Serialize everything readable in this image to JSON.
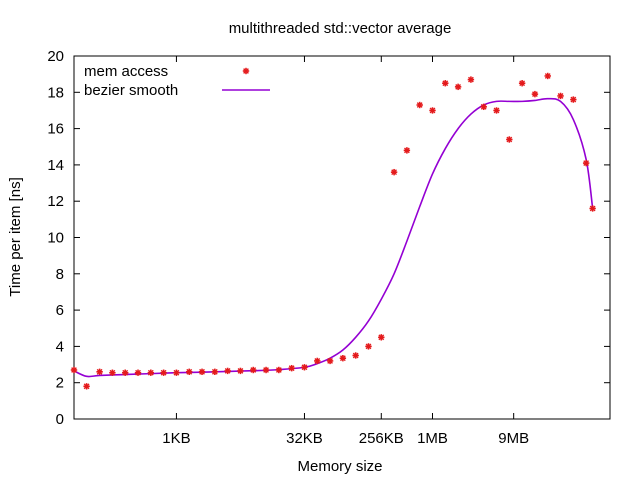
{
  "chart_data": {
    "type": "scatter",
    "title": "multithreaded std::vector average",
    "xlabel": "Memory size",
    "ylabel": "Time per item [ns]",
    "x_scale": "log2",
    "x_unit": "bytes",
    "xlim": [
      64,
      128000000
    ],
    "ylim": [
      0,
      20
    ],
    "y_ticks": [
      0,
      2,
      4,
      6,
      8,
      10,
      12,
      14,
      16,
      18,
      20
    ],
    "x_ticks": [
      {
        "label": "1KB",
        "value": 1024
      },
      {
        "label": "32KB",
        "value": 32768
      },
      {
        "label": "256KB",
        "value": 262144
      },
      {
        "label": "1MB",
        "value": 1048576
      },
      {
        "label": "9MB",
        "value": 9437184
      }
    ],
    "grid": false,
    "legend_position": "top-left",
    "series": [
      {
        "name": "mem access",
        "style": "points",
        "color": "#e41a1c",
        "points": [
          [
            64,
            2.7
          ],
          [
            90,
            1.8
          ],
          [
            128,
            2.6
          ],
          [
            181,
            2.55
          ],
          [
            256,
            2.55
          ],
          [
            362,
            2.55
          ],
          [
            512,
            2.55
          ],
          [
            724,
            2.55
          ],
          [
            1024,
            2.55
          ],
          [
            1448,
            2.6
          ],
          [
            2048,
            2.6
          ],
          [
            2896,
            2.6
          ],
          [
            4096,
            2.65
          ],
          [
            5793,
            2.65
          ],
          [
            8192,
            2.7
          ],
          [
            11585,
            2.7
          ],
          [
            16384,
            2.7
          ],
          [
            23170,
            2.8
          ],
          [
            32768,
            2.85
          ],
          [
            46341,
            3.2
          ],
          [
            65536,
            3.2
          ],
          [
            92682,
            3.35
          ],
          [
            131072,
            3.5
          ],
          [
            185364,
            4.0
          ],
          [
            262144,
            4.5
          ],
          [
            370728,
            13.6
          ],
          [
            524288,
            14.8
          ],
          [
            741455,
            17.3
          ],
          [
            1048576,
            17.0
          ],
          [
            1482910,
            18.5
          ],
          [
            2097152,
            18.3
          ],
          [
            2965820,
            18.7
          ],
          [
            4194304,
            17.2
          ],
          [
            5931640,
            17.0
          ],
          [
            8388608,
            15.4
          ],
          [
            11863280,
            18.5
          ],
          [
            16777216,
            17.9
          ],
          [
            23726560,
            18.9
          ],
          [
            33554432,
            17.8
          ],
          [
            47453120,
            17.6
          ],
          [
            67108864,
            14.1
          ],
          [
            80000000,
            11.6
          ]
        ]
      },
      {
        "name": "bezier smooth",
        "style": "line",
        "color": "#9400d3",
        "points": [
          [
            64,
            2.65
          ],
          [
            90,
            2.35
          ],
          [
            128,
            2.4
          ],
          [
            256,
            2.45
          ],
          [
            512,
            2.5
          ],
          [
            1024,
            2.55
          ],
          [
            2048,
            2.58
          ],
          [
            4096,
            2.62
          ],
          [
            8192,
            2.66
          ],
          [
            16384,
            2.72
          ],
          [
            32768,
            2.85
          ],
          [
            46341,
            3.05
          ],
          [
            65536,
            3.35
          ],
          [
            92682,
            3.8
          ],
          [
            131072,
            4.5
          ],
          [
            185364,
            5.4
          ],
          [
            262144,
            6.6
          ],
          [
            370728,
            8.0
          ],
          [
            524288,
            9.8
          ],
          [
            741455,
            11.7
          ],
          [
            1048576,
            13.5
          ],
          [
            1482910,
            14.9
          ],
          [
            2097152,
            16.0
          ],
          [
            2965820,
            16.8
          ],
          [
            4194304,
            17.3
          ],
          [
            5931640,
            17.5
          ],
          [
            8388608,
            17.5
          ],
          [
            11863280,
            17.5
          ],
          [
            16777216,
            17.55
          ],
          [
            23726560,
            17.65
          ],
          [
            33554432,
            17.5
          ],
          [
            47453120,
            16.5
          ],
          [
            67108864,
            14.3
          ],
          [
            80000000,
            11.6
          ]
        ]
      }
    ]
  }
}
